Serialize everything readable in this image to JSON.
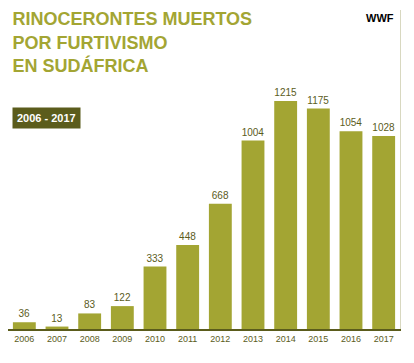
{
  "chart_data": {
    "type": "bar",
    "title": "RINOCERONTES MUERTOS\nPOR FURTIVISMO\nEN SUDÁFRICA",
    "subtitle": "2006 - 2017",
    "annotations": [
      {
        "text": "WWF"
      }
    ],
    "categories": [
      "2006",
      "2007",
      "2008",
      "2009",
      "2010",
      "2011",
      "2012",
      "2013",
      "2014",
      "2015",
      "2016",
      "2017"
    ],
    "values": [
      36,
      13,
      83,
      122,
      333,
      448,
      668,
      1004,
      1215,
      1175,
      1054,
      1028
    ],
    "color": "#a3a533",
    "ylim": [
      0,
      1700
    ],
    "data_labels": true,
    "tick_labels": "x",
    "grid": false
  }
}
